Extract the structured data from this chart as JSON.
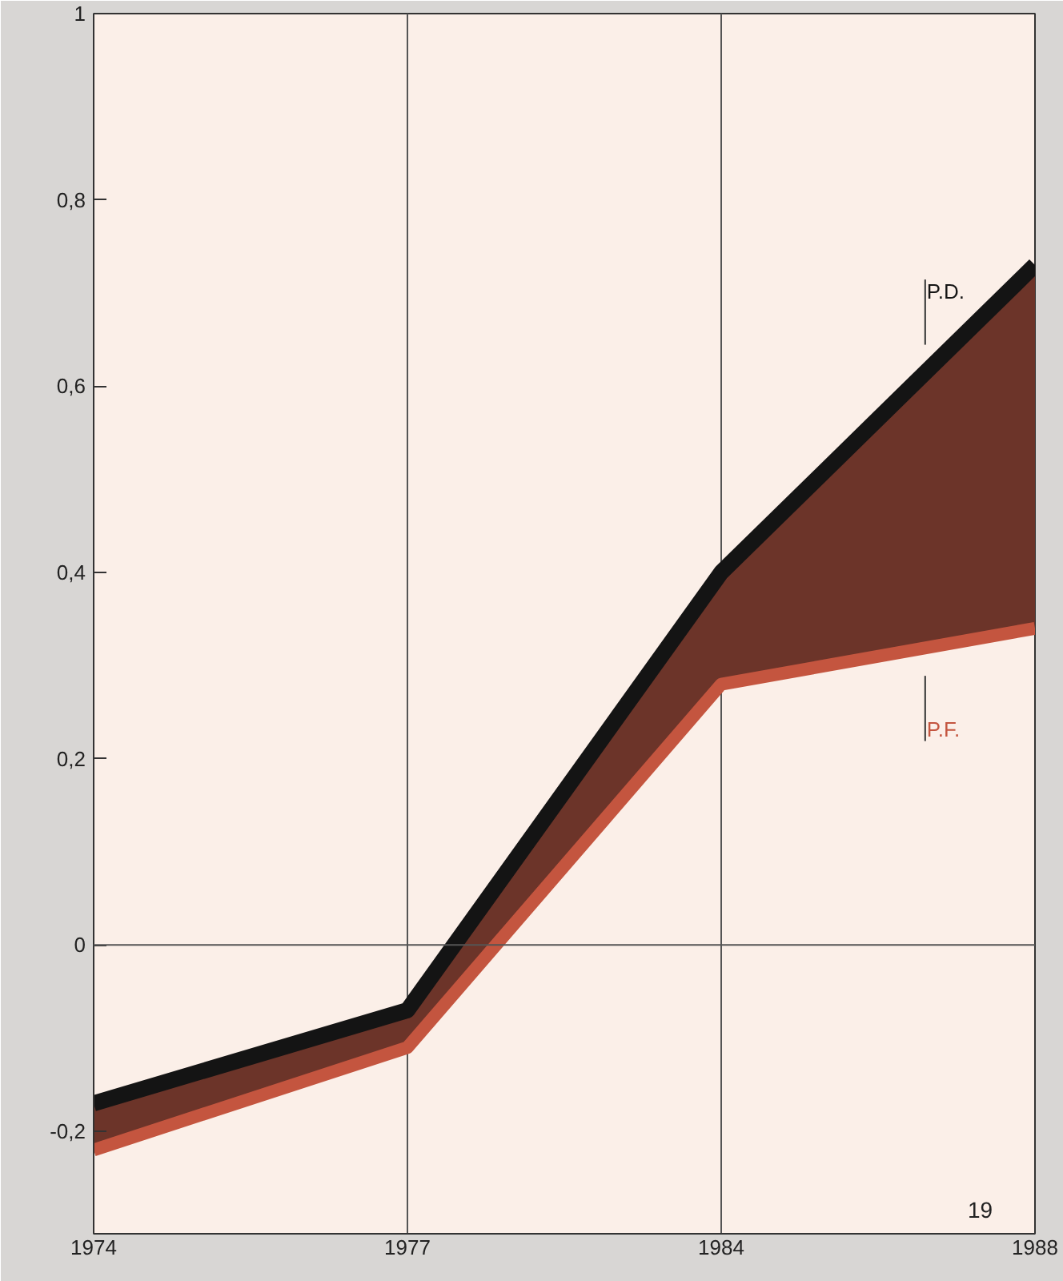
{
  "chart_data": {
    "type": "line",
    "categories": [
      "1974",
      "1977",
      "1984",
      "1988"
    ],
    "ylim": [
      -0.31,
      1
    ],
    "yticks": [
      {
        "value": -0.2,
        "label": "-0,2"
      },
      0,
      {
        "value": 0.2,
        "label": "0,2"
      },
      {
        "value": 0.4,
        "label": "0,4"
      },
      {
        "value": 0.6,
        "label": "0,6"
      },
      {
        "value": 0.8,
        "label": "0,8"
      },
      1
    ],
    "series": [
      {
        "name": "P.D.",
        "color": "#141414",
        "values": [
          -0.17,
          -0.07,
          0.4,
          0.73
        ],
        "lower": [
          -0.22,
          -0.11,
          0.28,
          0.34
        ],
        "upper": [
          -0.17,
          -0.07,
          0.4,
          0.73
        ]
      },
      {
        "name": "P.F.",
        "color": "#c4553f",
        "values": [
          -0.22,
          -0.11,
          0.28,
          0.34
        ]
      }
    ],
    "ref_lines": [
      {
        "axis": "y",
        "value": 0
      }
    ],
    "annotations": [
      "19"
    ],
    "grid": "x"
  }
}
